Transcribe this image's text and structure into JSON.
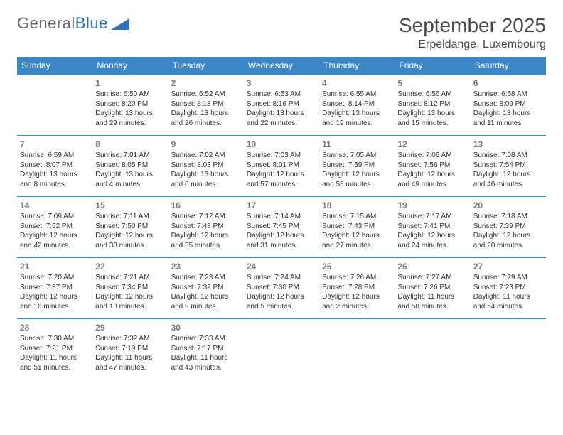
{
  "brand": {
    "part1": "General",
    "part2": "Blue"
  },
  "title": "September 2025",
  "location": "Erpeldange, Luxembourg",
  "colors": {
    "header_bg": "#3b86c7",
    "header_text": "#ffffff",
    "rule": "#3b86c7"
  },
  "weekdays": [
    "Sunday",
    "Monday",
    "Tuesday",
    "Wednesday",
    "Thursday",
    "Friday",
    "Saturday"
  ],
  "weeks": [
    [
      null,
      {
        "n": "1",
        "sr": "Sunrise: 6:50 AM",
        "ss": "Sunset: 8:20 PM",
        "d1": "Daylight: 13 hours",
        "d2": "and 29 minutes."
      },
      {
        "n": "2",
        "sr": "Sunrise: 6:52 AM",
        "ss": "Sunset: 8:18 PM",
        "d1": "Daylight: 13 hours",
        "d2": "and 26 minutes."
      },
      {
        "n": "3",
        "sr": "Sunrise: 6:53 AM",
        "ss": "Sunset: 8:16 PM",
        "d1": "Daylight: 13 hours",
        "d2": "and 22 minutes."
      },
      {
        "n": "4",
        "sr": "Sunrise: 6:55 AM",
        "ss": "Sunset: 8:14 PM",
        "d1": "Daylight: 13 hours",
        "d2": "and 19 minutes."
      },
      {
        "n": "5",
        "sr": "Sunrise: 6:56 AM",
        "ss": "Sunset: 8:12 PM",
        "d1": "Daylight: 13 hours",
        "d2": "and 15 minutes."
      },
      {
        "n": "6",
        "sr": "Sunrise: 6:58 AM",
        "ss": "Sunset: 8:09 PM",
        "d1": "Daylight: 13 hours",
        "d2": "and 11 minutes."
      }
    ],
    [
      {
        "n": "7",
        "sr": "Sunrise: 6:59 AM",
        "ss": "Sunset: 8:07 PM",
        "d1": "Daylight: 13 hours",
        "d2": "and 8 minutes."
      },
      {
        "n": "8",
        "sr": "Sunrise: 7:01 AM",
        "ss": "Sunset: 8:05 PM",
        "d1": "Daylight: 13 hours",
        "d2": "and 4 minutes."
      },
      {
        "n": "9",
        "sr": "Sunrise: 7:02 AM",
        "ss": "Sunset: 8:03 PM",
        "d1": "Daylight: 13 hours",
        "d2": "and 0 minutes."
      },
      {
        "n": "10",
        "sr": "Sunrise: 7:03 AM",
        "ss": "Sunset: 8:01 PM",
        "d1": "Daylight: 12 hours",
        "d2": "and 57 minutes."
      },
      {
        "n": "11",
        "sr": "Sunrise: 7:05 AM",
        "ss": "Sunset: 7:59 PM",
        "d1": "Daylight: 12 hours",
        "d2": "and 53 minutes."
      },
      {
        "n": "12",
        "sr": "Sunrise: 7:06 AM",
        "ss": "Sunset: 7:56 PM",
        "d1": "Daylight: 12 hours",
        "d2": "and 49 minutes."
      },
      {
        "n": "13",
        "sr": "Sunrise: 7:08 AM",
        "ss": "Sunset: 7:54 PM",
        "d1": "Daylight: 12 hours",
        "d2": "and 46 minutes."
      }
    ],
    [
      {
        "n": "14",
        "sr": "Sunrise: 7:09 AM",
        "ss": "Sunset: 7:52 PM",
        "d1": "Daylight: 12 hours",
        "d2": "and 42 minutes."
      },
      {
        "n": "15",
        "sr": "Sunrise: 7:11 AM",
        "ss": "Sunset: 7:50 PM",
        "d1": "Daylight: 12 hours",
        "d2": "and 38 minutes."
      },
      {
        "n": "16",
        "sr": "Sunrise: 7:12 AM",
        "ss": "Sunset: 7:48 PM",
        "d1": "Daylight: 12 hours",
        "d2": "and 35 minutes."
      },
      {
        "n": "17",
        "sr": "Sunrise: 7:14 AM",
        "ss": "Sunset: 7:45 PM",
        "d1": "Daylight: 12 hours",
        "d2": "and 31 minutes."
      },
      {
        "n": "18",
        "sr": "Sunrise: 7:15 AM",
        "ss": "Sunset: 7:43 PM",
        "d1": "Daylight: 12 hours",
        "d2": "and 27 minutes."
      },
      {
        "n": "19",
        "sr": "Sunrise: 7:17 AM",
        "ss": "Sunset: 7:41 PM",
        "d1": "Daylight: 12 hours",
        "d2": "and 24 minutes."
      },
      {
        "n": "20",
        "sr": "Sunrise: 7:18 AM",
        "ss": "Sunset: 7:39 PM",
        "d1": "Daylight: 12 hours",
        "d2": "and 20 minutes."
      }
    ],
    [
      {
        "n": "21",
        "sr": "Sunrise: 7:20 AM",
        "ss": "Sunset: 7:37 PM",
        "d1": "Daylight: 12 hours",
        "d2": "and 16 minutes."
      },
      {
        "n": "22",
        "sr": "Sunrise: 7:21 AM",
        "ss": "Sunset: 7:34 PM",
        "d1": "Daylight: 12 hours",
        "d2": "and 13 minutes."
      },
      {
        "n": "23",
        "sr": "Sunrise: 7:23 AM",
        "ss": "Sunset: 7:32 PM",
        "d1": "Daylight: 12 hours",
        "d2": "and 9 minutes."
      },
      {
        "n": "24",
        "sr": "Sunrise: 7:24 AM",
        "ss": "Sunset: 7:30 PM",
        "d1": "Daylight: 12 hours",
        "d2": "and 5 minutes."
      },
      {
        "n": "25",
        "sr": "Sunrise: 7:26 AM",
        "ss": "Sunset: 7:28 PM",
        "d1": "Daylight: 12 hours",
        "d2": "and 2 minutes."
      },
      {
        "n": "26",
        "sr": "Sunrise: 7:27 AM",
        "ss": "Sunset: 7:26 PM",
        "d1": "Daylight: 11 hours",
        "d2": "and 58 minutes."
      },
      {
        "n": "27",
        "sr": "Sunrise: 7:29 AM",
        "ss": "Sunset: 7:23 PM",
        "d1": "Daylight: 11 hours",
        "d2": "and 54 minutes."
      }
    ],
    [
      {
        "n": "28",
        "sr": "Sunrise: 7:30 AM",
        "ss": "Sunset: 7:21 PM",
        "d1": "Daylight: 11 hours",
        "d2": "and 51 minutes."
      },
      {
        "n": "29",
        "sr": "Sunrise: 7:32 AM",
        "ss": "Sunset: 7:19 PM",
        "d1": "Daylight: 11 hours",
        "d2": "and 47 minutes."
      },
      {
        "n": "30",
        "sr": "Sunrise: 7:33 AM",
        "ss": "Sunset: 7:17 PM",
        "d1": "Daylight: 11 hours",
        "d2": "and 43 minutes."
      },
      null,
      null,
      null,
      null
    ]
  ]
}
